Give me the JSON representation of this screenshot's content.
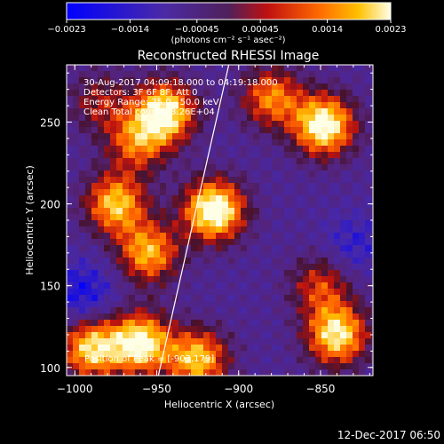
{
  "chart_data": {
    "type": "heatmap",
    "title": "Reconstructed RHESSI Image",
    "xlabel": "Heliocentric X (arcsec)",
    "ylabel": "Heliocentric Y (arcsec)",
    "xlim": [
      -1005,
      -818
    ],
    "ylim": [
      95,
      285
    ],
    "x_ticks": [
      -1000,
      -950,
      -900,
      -850
    ],
    "y_ticks": [
      100,
      150,
      200,
      250
    ],
    "x_tick_labels": [
      "−1000",
      "−950",
      "−900",
      "−850"
    ],
    "y_tick_labels": [
      "100",
      "150",
      "200",
      "250"
    ],
    "colorbar": {
      "range": [
        -0.0023,
        0.0023
      ],
      "ticks": [
        -0.0023,
        -0.0014,
        -0.00045,
        0.00045,
        0.0014,
        0.0023
      ],
      "tick_labels": [
        "−0.0023",
        "−0.0014",
        "−0.00045",
        "0.00045",
        "0.0014",
        "0.0023"
      ],
      "unit_label": "(photons cm⁻² s⁻¹ asec⁻²)"
    },
    "annotations": [
      "30-Aug-2017 04:09:18.000 to 04:19:18.000",
      "Detectors: 3F 6F 8F, Att 0",
      "Energy Range: 25.0 - 50.0 keV",
      "Clean     Total counts: 3.26E+04"
    ],
    "peak_label": "Position of Peak = [-903,179]",
    "sources": [
      {
        "x": -915,
        "y": 196,
        "strength": 1.0
      },
      {
        "x": -945,
        "y": 256,
        "strength": 0.9
      },
      {
        "x": -962,
        "y": 238,
        "strength": 0.55
      },
      {
        "x": -848,
        "y": 248,
        "strength": 0.95
      },
      {
        "x": -880,
        "y": 265,
        "strength": 0.6
      },
      {
        "x": -975,
        "y": 200,
        "strength": 0.75
      },
      {
        "x": -955,
        "y": 170,
        "strength": 0.7
      },
      {
        "x": -960,
        "y": 115,
        "strength": 0.9
      },
      {
        "x": -925,
        "y": 105,
        "strength": 0.75
      },
      {
        "x": -990,
        "y": 112,
        "strength": 0.8
      },
      {
        "x": -840,
        "y": 120,
        "strength": 0.85
      },
      {
        "x": -850,
        "y": 150,
        "strength": 0.45
      },
      {
        "x": -985,
        "y": 262,
        "strength": 0.35
      }
    ],
    "limb_line": [
      [
        -949,
        95
      ],
      [
        -906,
        285
      ]
    ]
  },
  "footer": {
    "date": "12-Dec-2017 06:50"
  },
  "colors": {
    "background": "#000000",
    "foreground": "#ffffff"
  }
}
